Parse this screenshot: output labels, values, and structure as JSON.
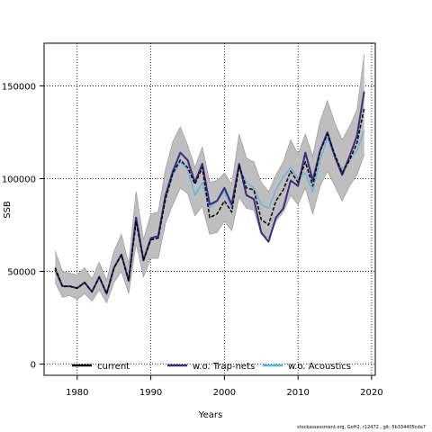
{
  "footer": "stockassessment.org, GoH2, r12472 , git: 5b334405cda7",
  "chart_data": {
    "type": "line",
    "xlabel": "Years",
    "ylabel": "SSB",
    "xlim": [
      1975.5,
      2020.5
    ],
    "ylim": [
      -6000,
      173000
    ],
    "x_ticks": [
      1980,
      1990,
      2000,
      2010,
      2020
    ],
    "y_ticks": [
      0,
      50000,
      100000,
      150000
    ],
    "y_tick_labels": [
      "0",
      "50000",
      "100000",
      "150000"
    ],
    "grid": true,
    "legend_position": "bottom",
    "x": [
      1977,
      1978,
      1979,
      1980,
      1981,
      1982,
      1983,
      1984,
      1985,
      1986,
      1987,
      1988,
      1989,
      1990,
      1991,
      1992,
      1993,
      1994,
      1995,
      1996,
      1997,
      1998,
      1999,
      2000,
      2001,
      2002,
      2003,
      2004,
      2005,
      2006,
      2007,
      2008,
      2009,
      2010,
      2011,
      2012,
      2013,
      2014,
      2015,
      2016,
      2017,
      2018,
      2019
    ],
    "series": [
      {
        "name": "current",
        "color": "#000000",
        "dash": "4,2",
        "values": [
          52000,
          42000,
          42000,
          41000,
          44000,
          39000,
          47000,
          38000,
          52000,
          59000,
          45000,
          77000,
          56000,
          67000,
          68000,
          89000,
          103000,
          110000,
          106000,
          97000,
          106000,
          79000,
          81000,
          88000,
          82000,
          107000,
          95000,
          94000,
          78000,
          75000,
          88000,
          94000,
          104000,
          98000,
          109000,
          96000,
          115000,
          124000,
          113000,
          103000,
          110000,
          119000,
          138000
        ]
      },
      {
        "name": "w.o. Trap-nets",
        "color": "#3a2a80",
        "dash": "",
        "values": [
          51000,
          42000,
          42000,
          41000,
          44000,
          39000,
          47000,
          38000,
          52000,
          59000,
          45000,
          79000,
          56000,
          68000,
          69000,
          91000,
          104000,
          114000,
          110000,
          98000,
          108000,
          86000,
          88000,
          95000,
          86000,
          108000,
          91000,
          89000,
          71000,
          66000,
          79000,
          84000,
          99000,
          96000,
          114000,
          99000,
          115000,
          125000,
          112000,
          102000,
          112000,
          123000,
          147000
        ]
      },
      {
        "name": "w.o. Acoustics",
        "color": "#56b4e9",
        "dash": "",
        "values": [
          52000,
          42000,
          42000,
          41000,
          44000,
          39000,
          47000,
          38000,
          52000,
          59000,
          45000,
          77000,
          56000,
          67000,
          68000,
          89000,
          102000,
          109000,
          105000,
          91000,
          98000,
          84000,
          88000,
          93000,
          84000,
          106000,
          98000,
          95000,
          86000,
          84000,
          94000,
          101000,
          106000,
          100000,
          103000,
          93000,
          110000,
          122000,
          111000,
          105000,
          110000,
          115000,
          126000
        ]
      }
    ],
    "band": {
      "color": "#bebebe",
      "lower": [
        44000,
        36000,
        37000,
        35000,
        38000,
        34000,
        40000,
        33000,
        44000,
        50000,
        38000,
        65000,
        47000,
        57000,
        57000,
        76000,
        86000,
        95000,
        92000,
        80000,
        85000,
        70000,
        71000,
        77000,
        72000,
        90000,
        84000,
        83000,
        70000,
        68000,
        77000,
        82000,
        91000,
        86000,
        95000,
        81000,
        96000,
        104000,
        96000,
        88000,
        96000,
        102000,
        113000
      ],
      "upper": [
        61000,
        50000,
        49000,
        48000,
        52000,
        46000,
        55000,
        45000,
        61000,
        70000,
        54000,
        93000,
        67000,
        81000,
        82000,
        105000,
        120000,
        128000,
        118000,
        106000,
        117000,
        98000,
        99000,
        103000,
        97000,
        124000,
        111000,
        109000,
        98000,
        93000,
        102000,
        109000,
        121000,
        113000,
        124000,
        112000,
        131000,
        142000,
        130000,
        121000,
        128000,
        137000,
        167000
      ]
    }
  }
}
